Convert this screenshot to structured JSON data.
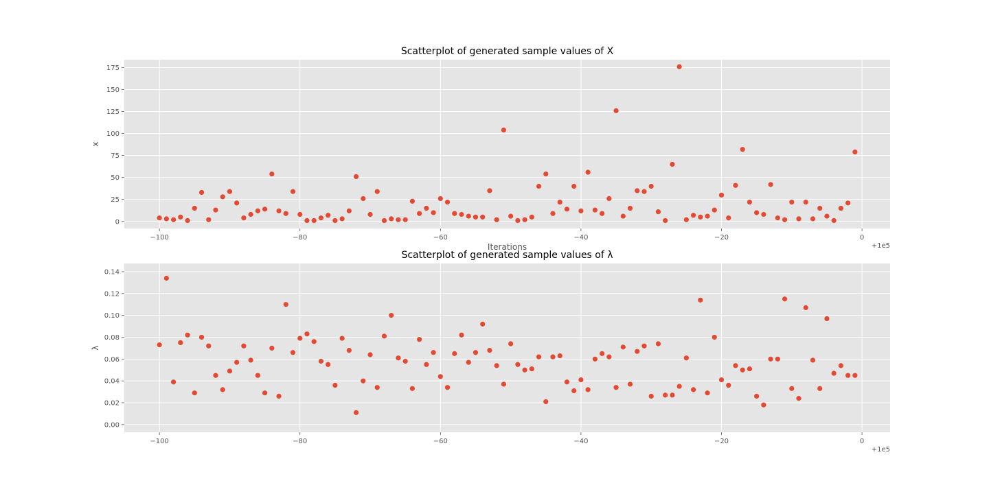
{
  "chart_data": [
    {
      "type": "scatter",
      "title": "Scatterplot of generated sample values of X",
      "xlabel": "Iterations",
      "ylabel": "x",
      "x_offset_label": "+1e5",
      "xlim": [
        -105,
        4
      ],
      "ylim": [
        -8,
        184
      ],
      "xticks": [
        -100,
        -80,
        -60,
        -40,
        -20,
        0
      ],
      "xtick_labels": [
        "−100",
        "−80",
        "−60",
        "−40",
        "−20",
        "0"
      ],
      "yticks": [
        0,
        25,
        50,
        75,
        100,
        125,
        150,
        175
      ],
      "ytick_labels": [
        "0",
        "25",
        "50",
        "75",
        "100",
        "125",
        "150",
        "175"
      ],
      "grid": true,
      "marker_color": "#E24A33",
      "x": [
        -100,
        -99,
        -98,
        -97,
        -96,
        -95,
        -94,
        -93,
        -92,
        -91,
        -90,
        -89,
        -88,
        -87,
        -86,
        -85,
        -84,
        -83,
        -82,
        -81,
        -80,
        -79,
        -78,
        -77,
        -76,
        -75,
        -74,
        -73,
        -72,
        -71,
        -70,
        -69,
        -68,
        -67,
        -66,
        -65,
        -64,
        -63,
        -62,
        -61,
        -60,
        -59,
        -58,
        -57,
        -56,
        -55,
        -54,
        -53,
        -52,
        -51,
        -50,
        -49,
        -48,
        -47,
        -46,
        -45,
        -44,
        -43,
        -42,
        -41,
        -40,
        -39,
        -38,
        -37,
        -36,
        -35,
        -34,
        -33,
        -32,
        -31,
        -30,
        -29,
        -28,
        -27,
        -26,
        -25,
        -24,
        -23,
        -22,
        -21,
        -20,
        -19,
        -18,
        -17,
        -16,
        -15,
        -14,
        -13,
        -12,
        -11,
        -10,
        -9,
        -8,
        -7,
        -6,
        -5,
        -4,
        -3,
        -2,
        -1
      ],
      "y": [
        4,
        3,
        2,
        5,
        1,
        15,
        33,
        2,
        13,
        28,
        34,
        21,
        4,
        8,
        12,
        14,
        54,
        12,
        9,
        34,
        8,
        1,
        1,
        4,
        7,
        1,
        3,
        12,
        51,
        26,
        8,
        34,
        1,
        3,
        2,
        2,
        23,
        9,
        15,
        10,
        26,
        22,
        9,
        8,
        6,
        5,
        5,
        35,
        2,
        104,
        6,
        1,
        2,
        5,
        40,
        54,
        9,
        22,
        14,
        40,
        12,
        56,
        13,
        9,
        26,
        126,
        6,
        15,
        35,
        34,
        40,
        11,
        1,
        65,
        176,
        2,
        7,
        5,
        6,
        13,
        30,
        4,
        41,
        82,
        22,
        10,
        8,
        42,
        4,
        2,
        22,
        3,
        22,
        3,
        15,
        6,
        1,
        15,
        21,
        79
      ]
    },
    {
      "type": "scatter",
      "title": "Scatterplot of generated sample values of λ",
      "xlabel": "",
      "ylabel": "λ",
      "x_offset_label": "+1e5",
      "xlim": [
        -105,
        4
      ],
      "ylim": [
        -0.007,
        0.1475
      ],
      "xticks": [
        -100,
        -80,
        -60,
        -40,
        -20,
        0
      ],
      "xtick_labels": [
        "−100",
        "−80",
        "−60",
        "−40",
        "−20",
        "0"
      ],
      "yticks": [
        0.0,
        0.02,
        0.04,
        0.06,
        0.08,
        0.1,
        0.12,
        0.14
      ],
      "ytick_labels": [
        "0.00",
        "0.02",
        "0.04",
        "0.06",
        "0.08",
        "0.10",
        "0.12",
        "0.14"
      ],
      "grid": true,
      "marker_color": "#E24A33",
      "x": [
        -100,
        -99,
        -98,
        -97,
        -96,
        -95,
        -94,
        -93,
        -92,
        -91,
        -90,
        -89,
        -88,
        -87,
        -86,
        -85,
        -84,
        -83,
        -82,
        -81,
        -80,
        -79,
        -78,
        -77,
        -76,
        -75,
        -74,
        -73,
        -72,
        -71,
        -70,
        -69,
        -68,
        -67,
        -66,
        -65,
        -64,
        -63,
        -62,
        -61,
        -60,
        -59,
        -58,
        -57,
        -56,
        -55,
        -54,
        -53,
        -52,
        -51,
        -50,
        -49,
        -48,
        -47,
        -46,
        -45,
        -44,
        -43,
        -42,
        -41,
        -40,
        -39,
        -38,
        -37,
        -36,
        -35,
        -34,
        -33,
        -32,
        -31,
        -30,
        -29,
        -28,
        -27,
        -26,
        -25,
        -24,
        -23,
        -22,
        -21,
        -20,
        -19,
        -18,
        -17,
        -16,
        -15,
        -14,
        -13,
        -12,
        -11,
        -10,
        -9,
        -8,
        -7,
        -6,
        -5,
        -4,
        -3,
        -2,
        -1
      ],
      "y": [
        0.073,
        0.134,
        0.039,
        0.075,
        0.082,
        0.029,
        0.08,
        0.072,
        0.045,
        0.032,
        0.049,
        0.057,
        0.072,
        0.059,
        0.045,
        0.029,
        0.07,
        0.026,
        0.11,
        0.066,
        0.079,
        0.083,
        0.076,
        0.058,
        0.055,
        0.036,
        0.079,
        0.068,
        0.011,
        0.04,
        0.064,
        0.034,
        0.081,
        0.1,
        0.061,
        0.058,
        0.033,
        0.078,
        0.055,
        0.066,
        0.044,
        0.034,
        0.065,
        0.082,
        0.057,
        0.066,
        0.092,
        0.068,
        0.054,
        0.037,
        0.074,
        0.055,
        0.05,
        0.051,
        0.062,
        0.021,
        0.062,
        0.063,
        0.039,
        0.031,
        0.041,
        0.032,
        0.06,
        0.065,
        0.062,
        0.034,
        0.071,
        0.037,
        0.067,
        0.072,
        0.026,
        0.074,
        0.027,
        0.027,
        0.035,
        0.061,
        0.032,
        0.114,
        0.029,
        0.08,
        0.041,
        0.036,
        0.054,
        0.05,
        0.051,
        0.026,
        0.018,
        0.06,
        0.06,
        0.115,
        0.033,
        0.024,
        0.107,
        0.059,
        0.033,
        0.097,
        0.047,
        0.054,
        0.045,
        0.045
      ]
    }
  ]
}
